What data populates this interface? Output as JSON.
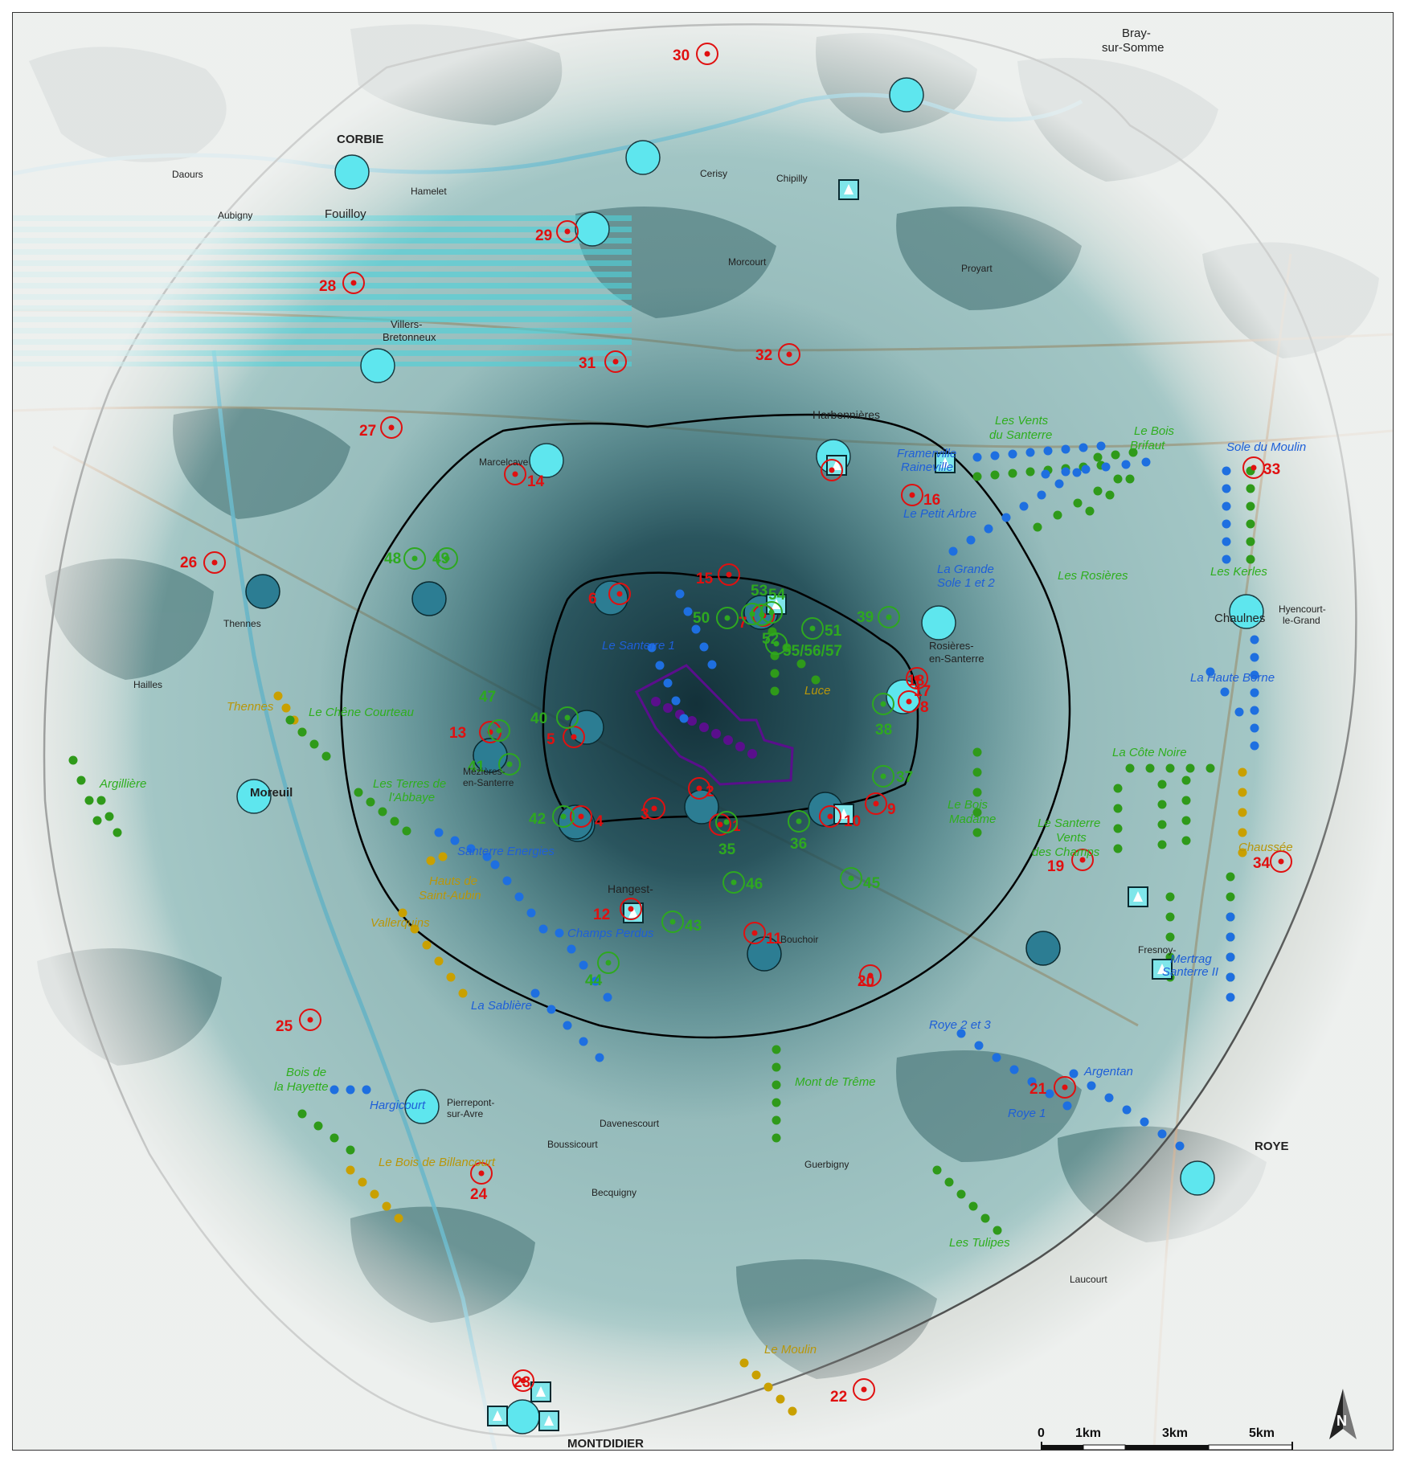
{
  "map": {
    "colors": {
      "background_land": "#d4d8d3",
      "forest": "#5c6d6b",
      "inner_shade": "#1d4752",
      "light_water": "#7fe6ea",
      "circle_light": "#5ee6ee",
      "circle_dark": "#2c7d93",
      "viewpoint_red": "#e01010",
      "viewpoint_green": "#2ea820",
      "wind_blue": "#1e6fe0",
      "wind_green": "#2f9a1a",
      "wind_gold": "#c9a000",
      "project": "#5a0f8c"
    },
    "towns": [
      {
        "id": "corbie",
        "label": "CORBIE",
        "major": true
      },
      {
        "id": "fouilloy",
        "label": "Fouilloy",
        "major": false
      },
      {
        "id": "villers",
        "label": "Villers-",
        "major": false
      },
      {
        "id": "villers2",
        "label": "Bretonneux",
        "major": false
      },
      {
        "id": "moreuil",
        "label": "Moreuil",
        "major": true
      },
      {
        "id": "montdidier",
        "label": "MONTDIDIER",
        "major": true
      },
      {
        "id": "roye",
        "label": "ROYE",
        "major": true
      },
      {
        "id": "chaulnes",
        "label": "Chaulnes",
        "major": false
      },
      {
        "id": "rosieres",
        "label": "Rosières-",
        "major": false
      },
      {
        "id": "rosieres2",
        "label": "en-Santerre",
        "major": false
      },
      {
        "id": "harbonnieres",
        "label": "Harbonnières",
        "major": false
      },
      {
        "id": "cerisy",
        "label": "Cerisy",
        "major": false
      },
      {
        "id": "hamelet",
        "label": "Hamelet",
        "major": false
      },
      {
        "id": "aubigny",
        "label": "Aubigny",
        "major": false
      },
      {
        "id": "daours",
        "label": "Daours",
        "major": false
      },
      {
        "id": "thennes",
        "label": "Thennes",
        "major": false
      },
      {
        "id": "hailles",
        "label": "Hailles",
        "major": false
      },
      {
        "id": "davenescourt",
        "label": "Davenescourt",
        "major": false
      },
      {
        "id": "bouchoir",
        "label": "Bouchoir",
        "major": false
      },
      {
        "id": "proyart",
        "label": "Proyart",
        "major": false
      },
      {
        "id": "morcourt",
        "label": "Morcourt",
        "major": false
      },
      {
        "id": "chipilly",
        "label": "Chipilly",
        "major": false
      },
      {
        "id": "marcelcave",
        "label": "Marcelcave",
        "major": false
      },
      {
        "id": "mezieres",
        "label": "Mézières-",
        "major": false
      },
      {
        "id": "mezieres2",
        "label": "en-Santerre",
        "major": false
      },
      {
        "id": "hangest",
        "label": "Hangest-",
        "major": false
      },
      {
        "id": "fresnoy",
        "label": "Fresnoy-",
        "major": false
      },
      {
        "id": "bray",
        "label": "Bray-",
        "major": false
      },
      {
        "id": "bray2",
        "label": "sur-Somme",
        "major": false
      },
      {
        "id": "pierrepont",
        "label": "Pierrepont-",
        "major": false
      },
      {
        "id": "pierrepont2",
        "label": "sur-Avre",
        "major": false
      },
      {
        "id": "guerbigny",
        "label": "Guerbigny",
        "major": false
      },
      {
        "id": "bequigny",
        "label": "Becquigny",
        "major": false
      },
      {
        "id": "laucourt",
        "label": "Laucourt",
        "major": false
      },
      {
        "id": "boussicourt",
        "label": "Boussicourt",
        "major": false
      },
      {
        "id": "hyencourt",
        "label": "Hyencourt-",
        "major": false
      },
      {
        "id": "hyencourt2",
        "label": "le-Grand",
        "major": false
      }
    ],
    "wind_parks": [
      {
        "id": "vents",
        "label": "Les Vents",
        "color": "green"
      },
      {
        "id": "vents2",
        "label": "du Santerre",
        "color": "green"
      },
      {
        "id": "boisbrif",
        "label": "Le Bois",
        "color": "green"
      },
      {
        "id": "boisbrif2",
        "label": "Brifaut",
        "color": "green"
      },
      {
        "id": "sole",
        "label": "Sole du Moulin",
        "color": "blue"
      },
      {
        "id": "framerville",
        "label": "Framerville",
        "color": "blue"
      },
      {
        "id": "raineville",
        "label": "Raineville",
        "color": "blue"
      },
      {
        "id": "petitarbre",
        "label": "Le Petit Arbre",
        "color": "blue"
      },
      {
        "id": "grandesole",
        "label": "La Grande",
        "color": "blue"
      },
      {
        "id": "grandesole2",
        "label": "Sole 1 et 2",
        "color": "blue"
      },
      {
        "id": "rosieres",
        "label": "Les Rosières",
        "color": "green"
      },
      {
        "id": "kerles",
        "label": "Les Kerles",
        "color": "green"
      },
      {
        "id": "santerre1",
        "label": "Le Santerre 1",
        "color": "blue"
      },
      {
        "id": "luce",
        "label": "Luce",
        "color": "gold"
      },
      {
        "id": "hauteborne",
        "label": "La Haute Borne",
        "color": "blue"
      },
      {
        "id": "cotenoire",
        "label": "La Côte Noire",
        "color": "green"
      },
      {
        "id": "chenecourteau",
        "label": "Le Chêne Courteau",
        "color": "green"
      },
      {
        "id": "thennes",
        "label": "Thennes",
        "color": "gold"
      },
      {
        "id": "argilliere",
        "label": "Argillière",
        "color": "green"
      },
      {
        "id": "terresabbaye",
        "label": "Les Terres de",
        "color": "green"
      },
      {
        "id": "terresabbaye2",
        "label": "l'Abbaye",
        "color": "green"
      },
      {
        "id": "santerreenergies",
        "label": "Santerre Energies",
        "color": "blue"
      },
      {
        "id": "hautssaint",
        "label": "Hauts de",
        "color": "gold"
      },
      {
        "id": "hautssaint2",
        "label": "Saint-Aubin",
        "color": "gold"
      },
      {
        "id": "valberquins",
        "label": "Vallerquins",
        "color": "gold"
      },
      {
        "id": "boismadame",
        "label": "Le Bois",
        "color": "green"
      },
      {
        "id": "boismadame2",
        "label": "Madame",
        "color": "green"
      },
      {
        "id": "santerrevents",
        "label": "Le Santerre",
        "color": "green"
      },
      {
        "id": "santerrevents2",
        "label": "Vents",
        "color": "green"
      },
      {
        "id": "santerrevents3",
        "label": "des Champs",
        "color": "green"
      },
      {
        "id": "champsperdus",
        "label": "Champs Perdus",
        "color": "blue"
      },
      {
        "id": "sabliere",
        "label": "La Sablière",
        "color": "blue"
      },
      {
        "id": "montdetreme",
        "label": "Mont de Trême",
        "color": "green"
      },
      {
        "id": "roye23",
        "label": "Roye 2 et 3",
        "color": "blue"
      },
      {
        "id": "argentan",
        "label": "Argentan",
        "color": "blue"
      },
      {
        "id": "roye1",
        "label": "Roye 1",
        "color": "blue"
      },
      {
        "id": "boishayette",
        "label": "Bois de",
        "color": "green"
      },
      {
        "id": "boishayette2",
        "label": "la Hayette",
        "color": "green"
      },
      {
        "id": "hargicourt",
        "label": "Hargicourt",
        "color": "blue"
      },
      {
        "id": "boisbillancourt",
        "label": "Le Bois de Billancourt",
        "color": "gold"
      },
      {
        "id": "tulipes",
        "label": "Les Tulipes",
        "color": "green"
      },
      {
        "id": "moulin",
        "label": "Le Moulin",
        "color": "gold"
      },
      {
        "id": "chaussee",
        "label": "Chaussée",
        "color": "gold"
      },
      {
        "id": "sertrag",
        "label": "Mertrag",
        "color": "blue"
      },
      {
        "id": "sertrag2",
        "label": "Santerre II",
        "color": "blue"
      }
    ],
    "viewpoints_red": [
      "1",
      "2",
      "3",
      "4",
      "5",
      "6",
      "7",
      "8",
      "9",
      "10",
      "11",
      "12",
      "13",
      "14",
      "15",
      "16",
      "17",
      "18",
      "19",
      "20",
      "21",
      "22",
      "23",
      "24",
      "25",
      "26",
      "27",
      "28",
      "29",
      "30",
      "31",
      "32",
      "33",
      "34"
    ],
    "viewpoints_green": [
      "35",
      "36",
      "37",
      "38",
      "39",
      "40",
      "41",
      "42",
      "43",
      "44",
      "45",
      "46",
      "47",
      "48",
      "49",
      "50",
      "51",
      "52",
      "53",
      "54",
      "55/56/57"
    ],
    "scale": {
      "labels": [
        "0",
        "1km",
        "3km",
        "5km"
      ]
    },
    "north": "N"
  }
}
